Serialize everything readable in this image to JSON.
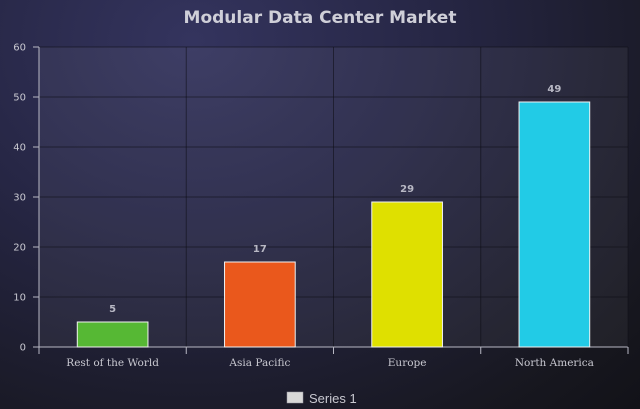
{
  "chart_data": {
    "type": "bar",
    "title": "Modular Data Center Market",
    "categories": [
      "Rest of the World",
      "Asia Pacific",
      "Europe",
      "North America"
    ],
    "series": [
      {
        "name": "Series 1",
        "values": [
          5,
          17,
          29,
          49
        ],
        "colors": [
          "#56b834",
          "#ea581c",
          "#dfe000",
          "#22cbe6"
        ]
      }
    ],
    "data_labels": [
      "5",
      "17",
      "29",
      "49"
    ],
    "y_ticks": [
      "0",
      "10",
      "20",
      "30",
      "40",
      "50",
      "60"
    ],
    "ylim": [
      0,
      60
    ],
    "grid": true,
    "legend_position": "bottom-center",
    "legend_color": "#d8d8d8"
  }
}
